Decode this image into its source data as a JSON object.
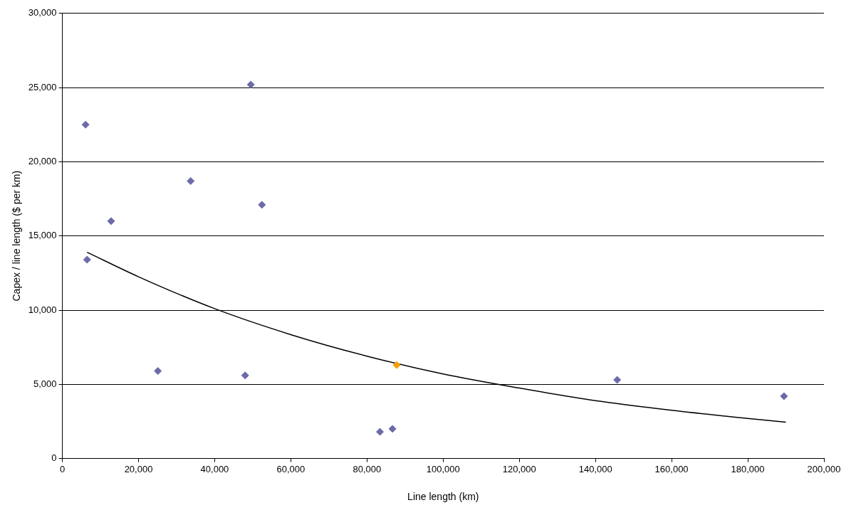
{
  "chart_data": {
    "type": "scatter",
    "xlabel": "Line length (km)",
    "ylabel": "Capex / line length ($ per km)",
    "xlim": [
      0,
      200000
    ],
    "ylim": [
      0,
      30000
    ],
    "xticks": [
      0,
      {
        "value": 20000,
        "label": "20,000"
      },
      {
        "value": 40000,
        "label": "40,000"
      },
      {
        "value": 60000,
        "label": "60,000"
      },
      {
        "value": 80000,
        "label": "80,000"
      },
      {
        "value": 100000,
        "label": "100,000"
      },
      {
        "value": 120000,
        "label": "120,000"
      },
      {
        "value": 140000,
        "label": "140,000"
      },
      {
        "value": 160000,
        "label": "160,000"
      },
      {
        "value": 180000,
        "label": "180,000"
      },
      {
        "value": 200000,
        "label": "200,000"
      }
    ],
    "yticks": [
      0,
      {
        "value": 5000,
        "label": "5,000"
      },
      {
        "value": 10000,
        "label": "10,000"
      },
      {
        "value": 15000,
        "label": "15,000"
      },
      {
        "value": 20000,
        "label": "20,000"
      },
      {
        "value": 25000,
        "label": "25,000"
      },
      {
        "value": 30000,
        "label": "30,000"
      }
    ],
    "grid": "y",
    "legend": false,
    "marker": "diamond",
    "series": [
      {
        "type": "scatter",
        "color": "#6b6ba8",
        "x": [
          6100,
          6500,
          12800,
          25100,
          33700,
          49500,
          48000,
          52400,
          83400,
          86700,
          145700,
          189500
        ],
        "values": [
          22500,
          13400,
          16000,
          5900,
          18700,
          25200,
          5600,
          17100,
          1800,
          2000,
          5300,
          4200
        ]
      },
      {
        "type": "scatter",
        "color": "#f5a000",
        "x": [
          87800
        ],
        "values": [
          6300
        ]
      },
      {
        "type": "line",
        "color": "#000000",
        "marker": "none",
        "x": [
          6500,
          20000,
          40000,
          60000,
          80000,
          100000,
          120000,
          140000,
          160000,
          180000,
          190000
        ],
        "values": [
          13900,
          12250,
          10100,
          8350,
          6900,
          5700,
          4750,
          3900,
          3250,
          2700,
          2450
        ]
      }
    ]
  }
}
